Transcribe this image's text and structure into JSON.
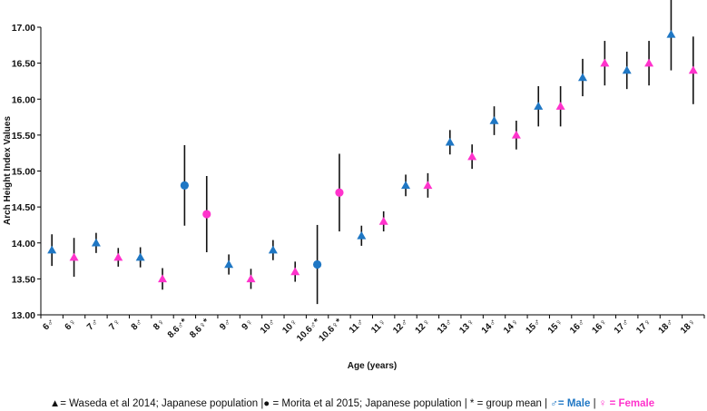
{
  "chart_data": {
    "type": "scatter",
    "title": "",
    "xlabel": "Age (years)",
    "ylabel": "Arch Height Index Values",
    "ylim": [
      13.0,
      17.0
    ],
    "yticks": [
      "13.00",
      "13.50",
      "14.00",
      "14.50",
      "15.00",
      "15.50",
      "16.00",
      "16.50",
      "17.00"
    ],
    "grid": false,
    "colors": {
      "male": "#1f77c4",
      "female": "#ff33cc",
      "errorbar": "#111111"
    },
    "categories": [
      "6♂",
      "6♀",
      "7♂",
      "7♀",
      "8♂",
      "8♀",
      "8.6♂*",
      "8.6♀*",
      "9♂",
      "9♀",
      "10♂",
      "10♀",
      "10.6♂*",
      "10.6♀*",
      "11♂",
      "11♀",
      "12♂",
      "12♀",
      "13♂",
      "13♀",
      "14♂",
      "14♀",
      "15♂",
      "15♀",
      "16♂",
      "16♀",
      "17♂",
      "17♀",
      "18♂",
      "18♀"
    ],
    "points": [
      {
        "label": "6♂",
        "mean": 13.9,
        "lower": 13.68,
        "upper": 14.12,
        "sex": "male",
        "marker": "triangle"
      },
      {
        "label": "6♀",
        "mean": 13.8,
        "lower": 13.53,
        "upper": 14.07,
        "sex": "female",
        "marker": "triangle"
      },
      {
        "label": "7♂",
        "mean": 14.0,
        "lower": 13.86,
        "upper": 14.14,
        "sex": "male",
        "marker": "triangle"
      },
      {
        "label": "7♀",
        "mean": 13.8,
        "lower": 13.67,
        "upper": 13.93,
        "sex": "female",
        "marker": "triangle"
      },
      {
        "label": "8♂",
        "mean": 13.8,
        "lower": 13.66,
        "upper": 13.94,
        "sex": "male",
        "marker": "triangle"
      },
      {
        "label": "8♀",
        "mean": 13.5,
        "lower": 13.35,
        "upper": 13.65,
        "sex": "female",
        "marker": "triangle"
      },
      {
        "label": "8.6♂*",
        "mean": 14.8,
        "lower": 14.24,
        "upper": 15.36,
        "sex": "male",
        "marker": "circle"
      },
      {
        "label": "8.6♀*",
        "mean": 14.4,
        "lower": 13.87,
        "upper": 14.93,
        "sex": "female",
        "marker": "circle"
      },
      {
        "label": "9♂",
        "mean": 13.7,
        "lower": 13.56,
        "upper": 13.84,
        "sex": "male",
        "marker": "triangle"
      },
      {
        "label": "9♀",
        "mean": 13.5,
        "lower": 13.36,
        "upper": 13.64,
        "sex": "female",
        "marker": "triangle"
      },
      {
        "label": "10♂",
        "mean": 13.9,
        "lower": 13.76,
        "upper": 14.04,
        "sex": "male",
        "marker": "triangle"
      },
      {
        "label": "10♀",
        "mean": 13.6,
        "lower": 13.46,
        "upper": 13.74,
        "sex": "female",
        "marker": "triangle"
      },
      {
        "label": "10.6♂*",
        "mean": 13.7,
        "lower": 13.15,
        "upper": 14.25,
        "sex": "male",
        "marker": "circle"
      },
      {
        "label": "10.6♀*",
        "mean": 14.7,
        "lower": 14.16,
        "upper": 15.24,
        "sex": "female",
        "marker": "circle"
      },
      {
        "label": "11♂",
        "mean": 14.1,
        "lower": 13.96,
        "upper": 14.24,
        "sex": "male",
        "marker": "triangle"
      },
      {
        "label": "11♀",
        "mean": 14.3,
        "lower": 14.16,
        "upper": 14.44,
        "sex": "female",
        "marker": "triangle"
      },
      {
        "label": "12♂",
        "mean": 14.8,
        "lower": 14.65,
        "upper": 14.95,
        "sex": "male",
        "marker": "triangle"
      },
      {
        "label": "12♀",
        "mean": 14.8,
        "lower": 14.63,
        "upper": 14.97,
        "sex": "female",
        "marker": "triangle"
      },
      {
        "label": "13♂",
        "mean": 15.4,
        "lower": 15.23,
        "upper": 15.57,
        "sex": "male",
        "marker": "triangle"
      },
      {
        "label": "13♀",
        "mean": 15.2,
        "lower": 15.03,
        "upper": 15.37,
        "sex": "female",
        "marker": "triangle"
      },
      {
        "label": "14♂",
        "mean": 15.7,
        "lower": 15.5,
        "upper": 15.9,
        "sex": "male",
        "marker": "triangle"
      },
      {
        "label": "14♀",
        "mean": 15.5,
        "lower": 15.3,
        "upper": 15.7,
        "sex": "female",
        "marker": "triangle"
      },
      {
        "label": "15♂",
        "mean": 15.9,
        "lower": 15.62,
        "upper": 16.18,
        "sex": "male",
        "marker": "triangle"
      },
      {
        "label": "15♀",
        "mean": 15.9,
        "lower": 15.62,
        "upper": 16.18,
        "sex": "female",
        "marker": "triangle"
      },
      {
        "label": "16♂",
        "mean": 16.3,
        "lower": 16.04,
        "upper": 16.56,
        "sex": "male",
        "marker": "triangle"
      },
      {
        "label": "16♀",
        "mean": 16.5,
        "lower": 16.19,
        "upper": 16.81,
        "sex": "female",
        "marker": "triangle"
      },
      {
        "label": "17♂",
        "mean": 16.4,
        "lower": 16.14,
        "upper": 16.66,
        "sex": "male",
        "marker": "triangle"
      },
      {
        "label": "17♀",
        "mean": 16.5,
        "lower": 16.19,
        "upper": 16.81,
        "sex": "female",
        "marker": "triangle"
      },
      {
        "label": "18♂",
        "mean": 16.9,
        "lower": 16.4,
        "upper": 17.4,
        "sex": "male",
        "marker": "triangle"
      },
      {
        "label": "18♀",
        "mean": 16.4,
        "lower": 15.93,
        "upper": 16.87,
        "sex": "female",
        "marker": "triangle"
      }
    ]
  },
  "legend": {
    "part1": "▲= Waseda et al 2014; Japanese population |● = Morita et al 2015; Japanese population | * = group mean | ",
    "male": "♂= Male",
    "sep": " | ",
    "female": "♀ = Female"
  }
}
